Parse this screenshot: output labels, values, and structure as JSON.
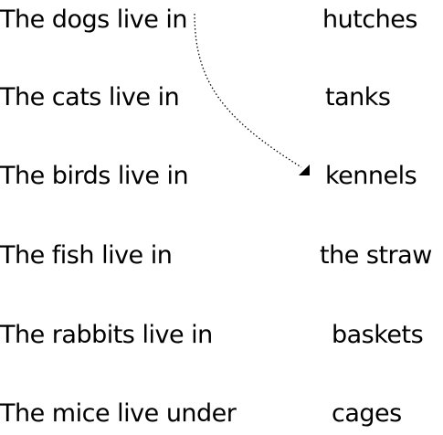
{
  "rows": [
    {
      "phrase": "The dogs live in",
      "answer": "hutches"
    },
    {
      "phrase": "The cats live in",
      "answer": "tanks"
    },
    {
      "phrase": "The birds live in",
      "answer": "kennels"
    },
    {
      "phrase": "The fish live in",
      "answer": "the straw"
    },
    {
      "phrase": "The rabbits live in",
      "answer": "baskets"
    },
    {
      "phrase": "The mice live under",
      "answer": "cages"
    }
  ],
  "connector": {
    "from_row": 0,
    "to_row": 2,
    "style": "dotted-arrow",
    "color": "#000000"
  }
}
